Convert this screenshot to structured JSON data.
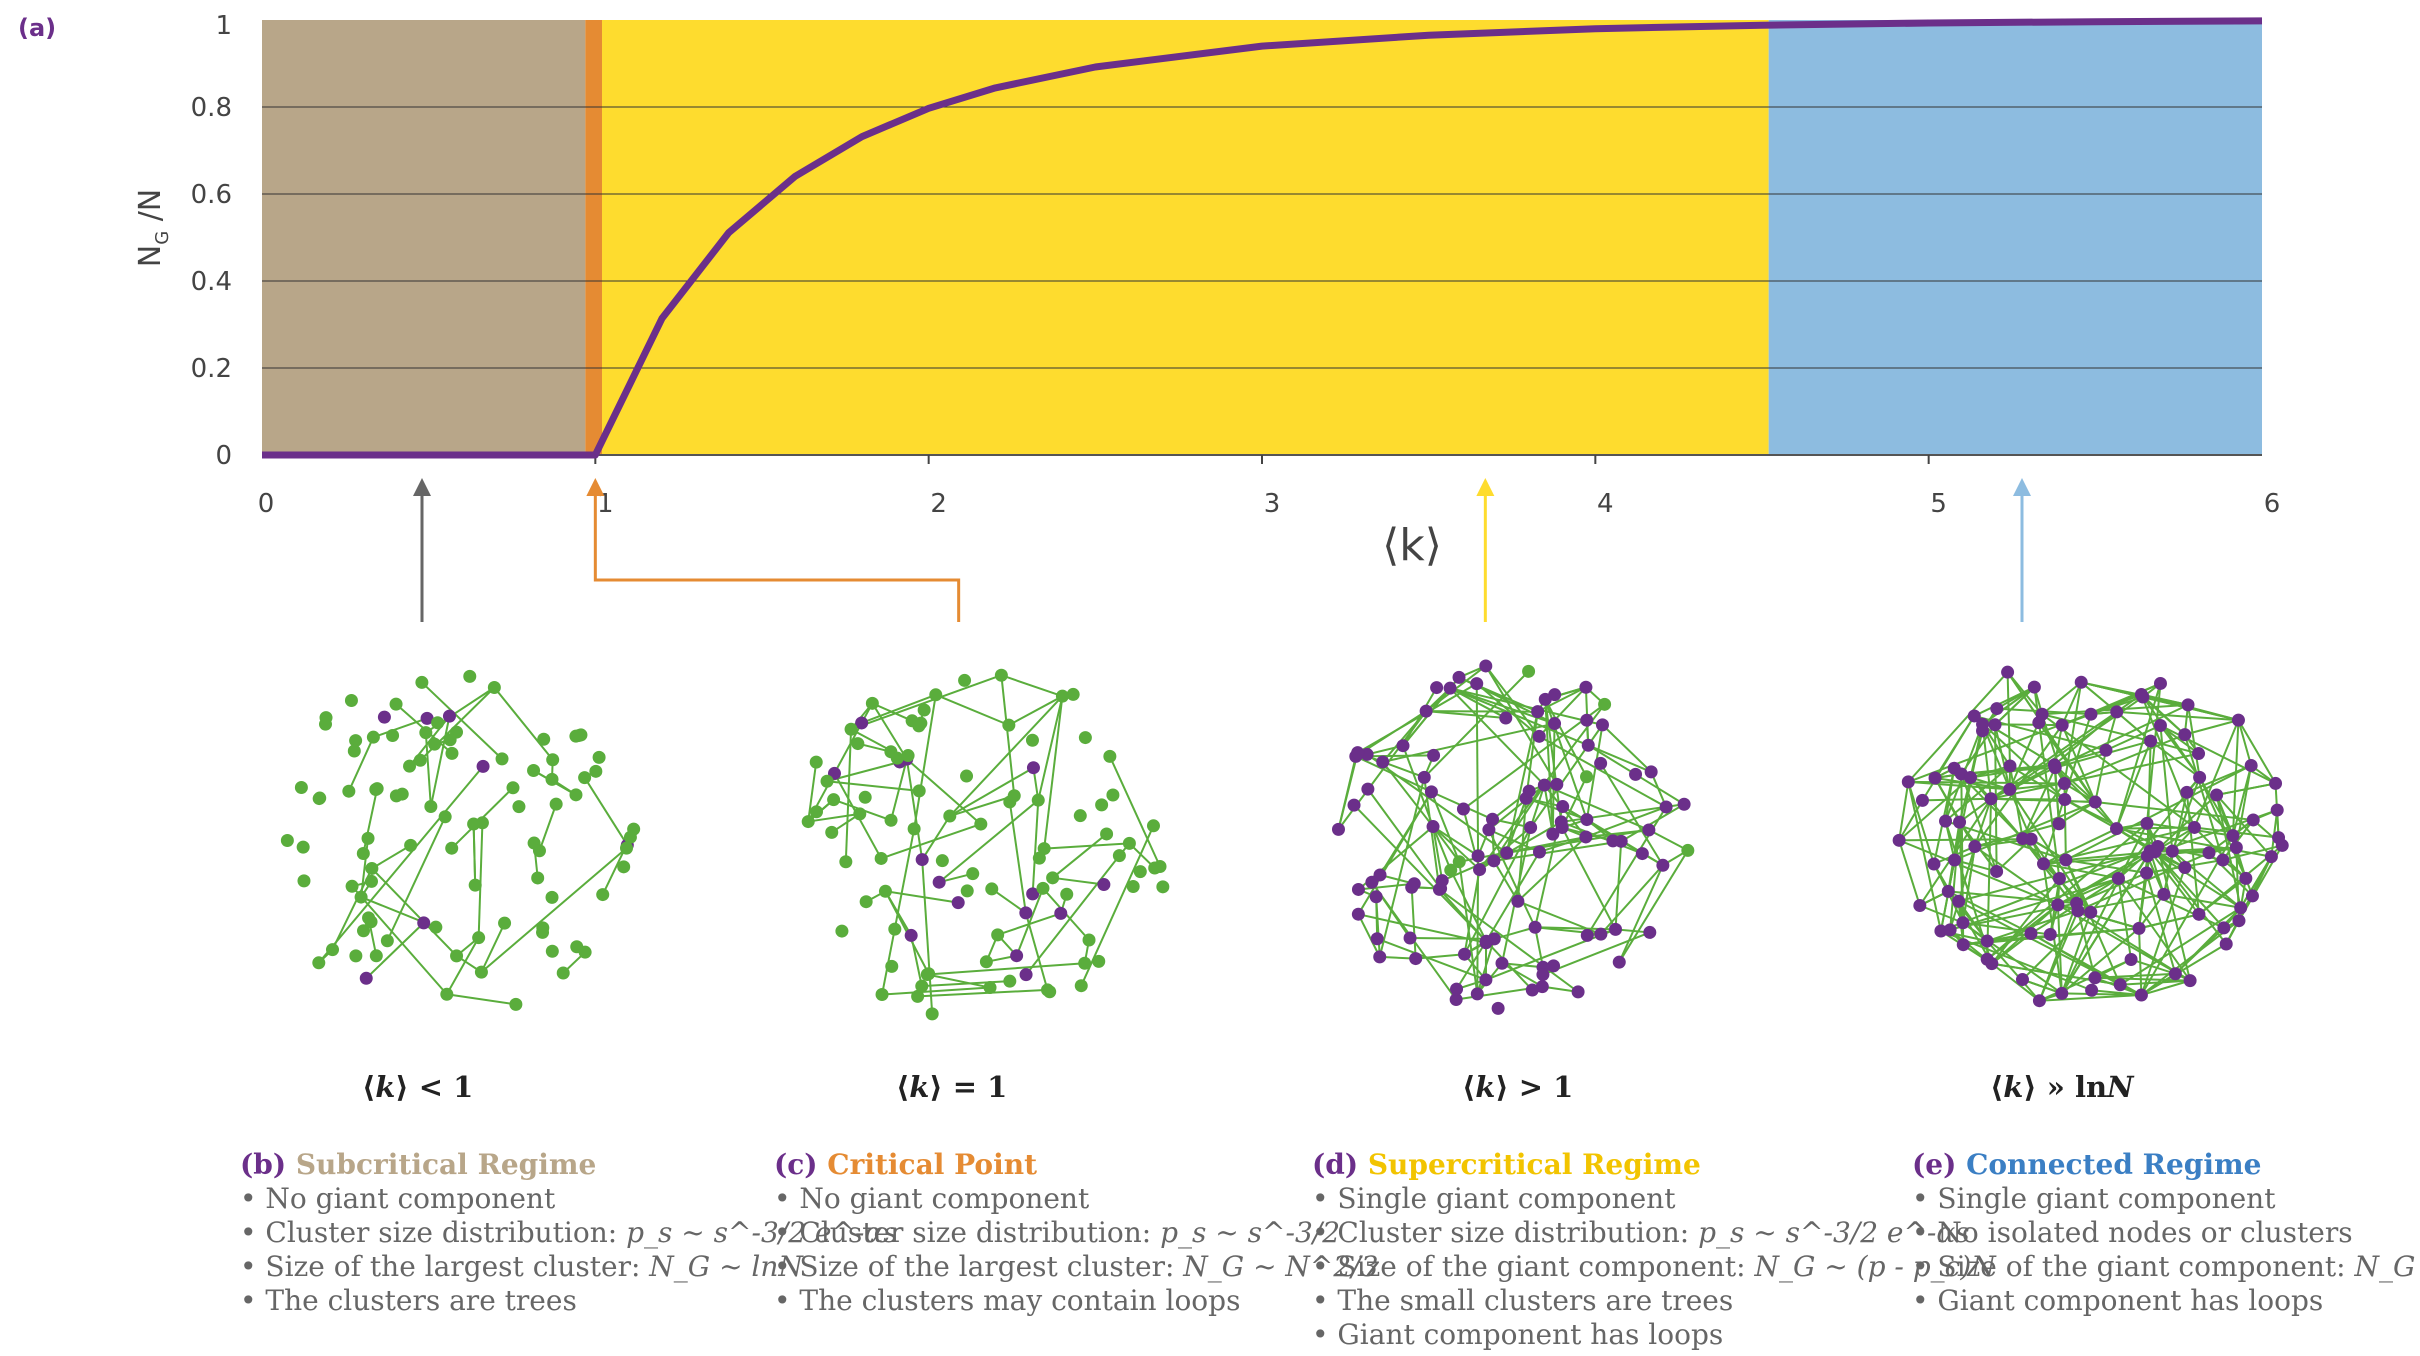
{
  "panel_a_label": "(a)",
  "chart_data": {
    "type": "line",
    "title": "",
    "xlabel": "⟨k⟩",
    "ylabel": "N_G /N",
    "ylabel_main": "N",
    "ylabel_sub": "G",
    "ylabel_tail": " /N",
    "xlim": [
      0,
      6
    ],
    "ylim": [
      0,
      1
    ],
    "x_ticks": [
      "0",
      "1",
      "2",
      "3",
      "4",
      "5",
      "6"
    ],
    "y_ticks": [
      "0",
      "0.2",
      "0.4",
      "0.6",
      "0.8",
      "1"
    ],
    "grid": true,
    "regions": [
      {
        "name": "subcritical",
        "from": 0,
        "to": 0.97,
        "color": "#b8a689"
      },
      {
        "name": "critical",
        "from": 0.97,
        "to": 1.02,
        "color": "#e58b33"
      },
      {
        "name": "supercritical",
        "from": 1.02,
        "to": 4.52,
        "color": "#fedc2e"
      },
      {
        "name": "connected",
        "from": 4.52,
        "to": 6,
        "color": "#8dbce0"
      }
    ],
    "series": [
      {
        "name": "N_G/N",
        "color": "#6b2f8a",
        "x": [
          0,
          0.5,
          1.0,
          1.2,
          1.4,
          1.6,
          1.8,
          2.0,
          2.2,
          2.5,
          3.0,
          3.5,
          4.0,
          4.5,
          5.0,
          5.5,
          6.0
        ],
        "values": [
          0,
          0,
          0,
          0.314,
          0.511,
          0.641,
          0.732,
          0.797,
          0.844,
          0.892,
          0.94,
          0.965,
          0.98,
          0.988,
          0.993,
          0.996,
          0.998
        ]
      }
    ],
    "arrows": [
      {
        "at": 0.48,
        "color": "#666666"
      },
      {
        "at": 1.0,
        "color": "#e58b33",
        "bend_to": 2.09
      },
      {
        "at": 3.67,
        "color": "#fedc2e"
      },
      {
        "at": 5.28,
        "color": "#8dbce0"
      }
    ]
  },
  "colors": {
    "purple": "#6b2f8a",
    "green": "#5aad3c",
    "sub": "#b8a689",
    "critical": "#e58b33",
    "super": "#f2c400",
    "connected": "#3b7fc4"
  },
  "conditions": {
    "b": {
      "k": "k",
      "op": " < 1"
    },
    "c": {
      "k": "k",
      "op": " = 1"
    },
    "d": {
      "k": "k",
      "op": " > 1"
    },
    "e": {
      "k": "k",
      "op": " » ln",
      "n": "N"
    }
  },
  "regimes": {
    "b": {
      "tag": "(b)",
      "title": "Subcritical Regime",
      "l1": "No giant component",
      "l2_pre": "Cluster size distribution: ",
      "l2_formula": "p_s ~ s^-3/2 e^-αs",
      "l3_pre": "Size of the largest cluster: ",
      "l3_formula": "N_G ~ lnN",
      "l4": "The clusters are trees"
    },
    "c": {
      "tag": "(c)",
      "title": "Critical Point",
      "l1": "No giant component",
      "l2_pre": "Cluster size distribution: ",
      "l2_formula": "p_s ~ s^-3/2",
      "l3_pre": "Size of the largest cluster: ",
      "l3_formula": "N_G ~ N^2/3",
      "l4": "The clusters may contain loops"
    },
    "d": {
      "tag": "(d)",
      "title": "Supercritical Regime",
      "l1": "Single giant component",
      "l2_pre": "Cluster size distribution: ",
      "l2_formula": "p_s ~ s^-3/2 e^-αs",
      "l3_pre": "Size of the giant component: ",
      "l3_formula": "N_G ~ (p - p_c)N",
      "l4": "The small clusters are trees",
      "l5": "Giant component has loops"
    },
    "e": {
      "tag": "(e)",
      "title": "Connected Regime",
      "l1": "Single giant component",
      "l2": "No isolated nodes or clusters",
      "l3_pre": "Size of the giant component: ",
      "l3_formula": "N_G = N",
      "l4": "Giant component has loops"
    }
  }
}
